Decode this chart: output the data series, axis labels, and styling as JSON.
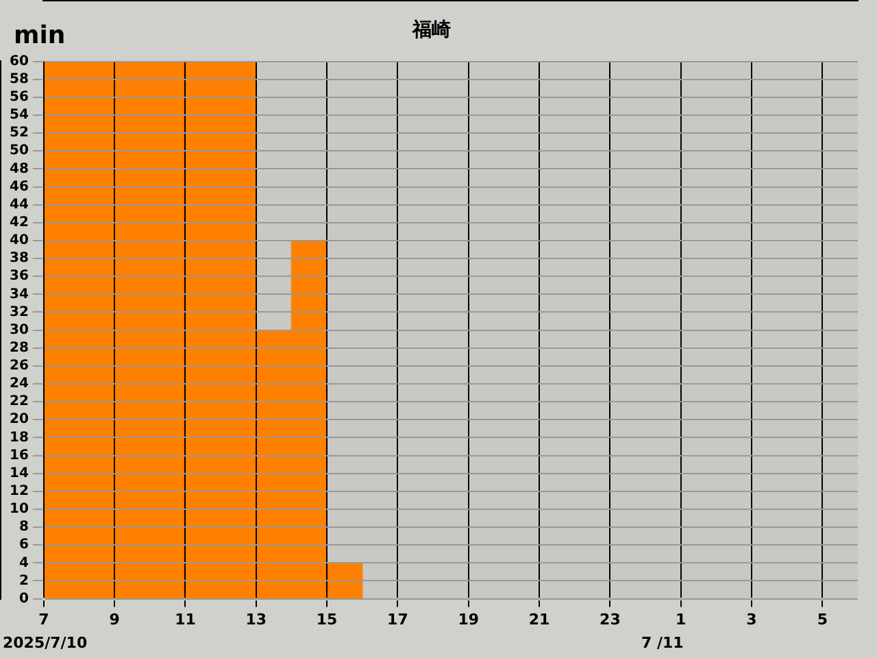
{
  "chart_data": {
    "type": "histogram",
    "title": "福崎",
    "ylabel": "min",
    "bins": [
      "2025-07-10T07:00",
      "2025-07-10T08:00",
      "2025-07-10T09:00",
      "2025-07-10T10:00",
      "2025-07-10T11:00",
      "2025-07-10T12:00",
      "2025-07-10T13:00",
      "2025-07-10T14:00",
      "2025-07-10T15:00",
      "2025-07-10T16:00",
      "2025-07-10T17:00",
      "2025-07-10T18:00",
      "2025-07-10T19:00",
      "2025-07-10T20:00",
      "2025-07-10T21:00",
      "2025-07-10T22:00",
      "2025-07-10T23:00",
      "2025-07-11T00:00",
      "2025-07-11T01:00",
      "2025-07-11T02:00",
      "2025-07-11T03:00",
      "2025-07-11T04:00",
      "2025-07-11T05:00",
      "2025-07-11T06:00"
    ],
    "values": [
      60,
      60,
      60,
      60,
      60,
      60,
      30,
      40,
      4,
      0,
      0,
      0,
      0,
      0,
      0,
      0,
      0,
      0,
      0,
      0,
      0,
      0,
      0
    ],
    "color": "#ff8000",
    "xlim": [
      "2025-07-10T07:00",
      "2025-07-11T06:00"
    ],
    "xticks": [
      {
        "value": "2025-07-10T07:00",
        "label": "7"
      },
      {
        "value": "2025-07-10T09:00",
        "label": "9"
      },
      {
        "value": "2025-07-10T11:00",
        "label": "11"
      },
      {
        "value": "2025-07-10T13:00",
        "label": "13"
      },
      {
        "value": "2025-07-10T15:00",
        "label": "15"
      },
      {
        "value": "2025-07-10T17:00",
        "label": "17"
      },
      {
        "value": "2025-07-10T19:00",
        "label": "19"
      },
      {
        "value": "2025-07-10T21:00",
        "label": "21"
      },
      {
        "value": "2025-07-10T23:00",
        "label": "23"
      },
      {
        "value": "2025-07-11T01:00",
        "label": "1"
      },
      {
        "value": "2025-07-11T03:00",
        "label": "3"
      },
      {
        "value": "2025-07-11T05:00",
        "label": "5"
      }
    ],
    "ylim": [
      0,
      60
    ],
    "yticks": [
      0,
      2,
      4,
      6,
      8,
      10,
      12,
      14,
      16,
      18,
      20,
      22,
      24,
      26,
      28,
      30,
      32,
      34,
      36,
      38,
      40,
      42,
      44,
      46,
      48,
      50,
      52,
      54,
      56,
      58,
      60
    ],
    "grid": true,
    "annotations": [
      "2025/7/10",
      "7 /11"
    ]
  }
}
